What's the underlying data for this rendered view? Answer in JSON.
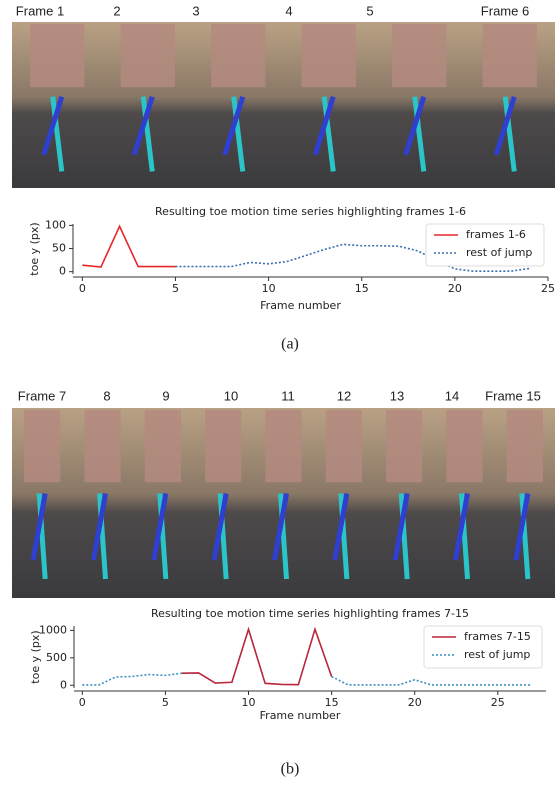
{
  "figure": {
    "panels": [
      {
        "frame_labels": [
          "Frame 1",
          "2",
          "3",
          "4",
          "5",
          "Frame 6"
        ],
        "caption": "(a)"
      },
      {
        "frame_labels": [
          "Frame 7",
          "8",
          "9",
          "10",
          "11",
          "12",
          "13",
          "14",
          "Frame 15"
        ],
        "caption": "(b)"
      }
    ]
  },
  "chart_data": [
    {
      "type": "line",
      "title": "Resulting toe motion time series highlighting frames 1-6",
      "x_label": "Frame number",
      "y_label": "toe y (px)",
      "x": [
        0,
        1,
        2,
        3,
        4,
        5,
        6,
        7,
        8,
        9,
        10,
        11,
        12,
        13,
        14,
        15,
        16,
        17,
        18,
        19,
        20,
        21,
        22,
        23,
        24
      ],
      "series": [
        {
          "name": "frames 1-6",
          "color": "#e8262a",
          "style": "solid",
          "values": [
            14,
            10,
            98,
            11,
            11,
            11,
            null,
            null,
            null,
            null,
            null,
            null,
            null,
            null,
            null,
            null,
            null,
            null,
            null,
            null,
            null,
            null,
            null,
            null,
            null
          ]
        },
        {
          "name": "rest of jump",
          "color": "#3a6fb0",
          "style": "dotted",
          "values": [
            null,
            null,
            null,
            null,
            null,
            11,
            11,
            11,
            11,
            20,
            17,
            22,
            35,
            48,
            59,
            56,
            56,
            55,
            45,
            25,
            6,
            1,
            1,
            1,
            7
          ]
        }
      ],
      "xlim": [
        -0.5,
        25
      ],
      "ylim": [
        -5,
        103
      ],
      "xticks": [
        0,
        5,
        10,
        15,
        20,
        25
      ],
      "yticks": [
        0,
        50,
        100
      ],
      "legend": "upper right"
    },
    {
      "type": "line",
      "title": "Resulting toe motion time series highlighting frames 7-15",
      "x_label": "Frame number",
      "y_label": "toe y (px)",
      "x": [
        0,
        1,
        2,
        3,
        4,
        5,
        6,
        7,
        8,
        9,
        10,
        11,
        12,
        13,
        14,
        15,
        16,
        17,
        18,
        19,
        20,
        21,
        22,
        23,
        24,
        25,
        26,
        27
      ],
      "series": [
        {
          "name": "frames 7-15",
          "color": "#b8283a",
          "style": "solid",
          "values": [
            null,
            null,
            null,
            null,
            null,
            null,
            220,
            225,
            40,
            55,
            1020,
            35,
            15,
            10,
            1020,
            160,
            null,
            null,
            null,
            null,
            null,
            null,
            null,
            null,
            null,
            null,
            null,
            null
          ]
        },
        {
          "name": "rest of jump",
          "color": "#3a8fc0",
          "style": "dotted",
          "values": [
            5,
            5,
            150,
            160,
            195,
            180,
            220,
            null,
            null,
            null,
            null,
            null,
            null,
            null,
            null,
            160,
            5,
            5,
            5,
            5,
            100,
            5,
            5,
            5,
            5,
            5,
            5,
            5
          ]
        }
      ],
      "xlim": [
        -0.5,
        27.9
      ],
      "ylim": [
        -50,
        1080
      ],
      "xticks": [
        0,
        5,
        10,
        15,
        20,
        25
      ],
      "yticks": [
        0,
        500,
        1000
      ],
      "legend": "upper right"
    }
  ]
}
